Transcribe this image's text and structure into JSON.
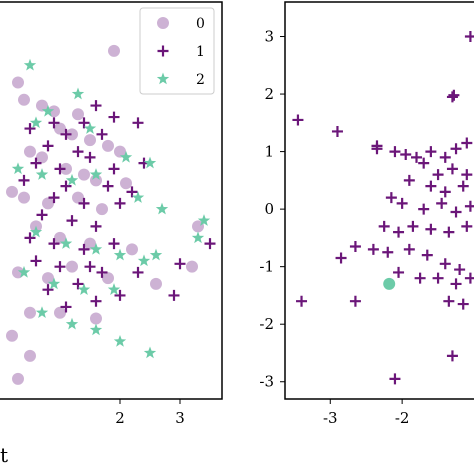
{
  "colors": {
    "class_0": "#cdb2d4",
    "class_1": "#6b1679",
    "class_2": "#6ccba8",
    "axis": "#000000",
    "legend_border": "#cccccc"
  },
  "cropped_xlabel_fragment": "t",
  "chart_data": [
    {
      "type": "scatter",
      "xticks": [
        "2",
        "3"
      ],
      "yticks": [],
      "xlim": [
        0.0,
        3.7
      ],
      "ylim": [
        -3.3,
        3.6
      ],
      "legend": {
        "placement": "top-right",
        "entries": [
          "0",
          "1",
          "2"
        ]
      },
      "series": [
        {
          "name": "0",
          "marker": "circle",
          "color": "#cdb2d4",
          "points": [
            [
              1.9,
              2.75
            ],
            [
              0.3,
              2.2
            ],
            [
              0.4,
              1.9
            ],
            [
              0.7,
              1.8
            ],
            [
              0.9,
              1.7
            ],
            [
              1.3,
              1.65
            ],
            [
              1.0,
              1.4
            ],
            [
              1.2,
              1.3
            ],
            [
              1.5,
              1.2
            ],
            [
              1.8,
              1.1
            ],
            [
              2.0,
              1.0
            ],
            [
              0.5,
              1.0
            ],
            [
              0.7,
              0.9
            ],
            [
              1.1,
              0.7
            ],
            [
              1.4,
              0.6
            ],
            [
              1.6,
              0.5
            ],
            [
              2.1,
              0.45
            ],
            [
              0.2,
              0.3
            ],
            [
              0.4,
              0.2
            ],
            [
              0.8,
              0.1
            ],
            [
              1.3,
              0.2
            ],
            [
              1.7,
              0.0
            ],
            [
              3.3,
              -0.3
            ],
            [
              0.6,
              -0.3
            ],
            [
              1.0,
              -0.5
            ],
            [
              1.5,
              -0.6
            ],
            [
              2.2,
              -0.7
            ],
            [
              3.2,
              -1.0
            ],
            [
              0.3,
              -1.1
            ],
            [
              0.8,
              -1.2
            ],
            [
              1.2,
              -1.0
            ],
            [
              1.8,
              -1.2
            ],
            [
              2.6,
              -1.3
            ],
            [
              0.5,
              -1.8
            ],
            [
              1.0,
              -1.8
            ],
            [
              1.6,
              -1.9
            ],
            [
              0.2,
              -2.2
            ],
            [
              0.5,
              -2.55
            ],
            [
              0.3,
              -2.95
            ]
          ]
        },
        {
          "name": "1",
          "marker": "plus",
          "color": "#6b1679",
          "points": [
            [
              1.6,
              1.8
            ],
            [
              1.9,
              1.6
            ],
            [
              0.9,
              1.5
            ],
            [
              1.4,
              1.5
            ],
            [
              0.5,
              1.4
            ],
            [
              1.1,
              1.3
            ],
            [
              1.7,
              1.3
            ],
            [
              2.3,
              1.5
            ],
            [
              0.8,
              1.1
            ],
            [
              1.3,
              1.0
            ],
            [
              1.5,
              0.9
            ],
            [
              0.6,
              0.8
            ],
            [
              1.0,
              0.7
            ],
            [
              1.9,
              0.7
            ],
            [
              2.4,
              0.8
            ],
            [
              0.4,
              0.5
            ],
            [
              1.1,
              0.4
            ],
            [
              1.8,
              0.4
            ],
            [
              2.2,
              0.3
            ],
            [
              0.9,
              0.2
            ],
            [
              1.4,
              0.1
            ],
            [
              2.0,
              0.1
            ],
            [
              0.7,
              -0.1
            ],
            [
              1.2,
              -0.2
            ],
            [
              1.6,
              -0.3
            ],
            [
              0.5,
              -0.5
            ],
            [
              0.9,
              -0.6
            ],
            [
              1.4,
              -0.7
            ],
            [
              1.9,
              -0.6
            ],
            [
              0.6,
              -0.9
            ],
            [
              1.0,
              -1.0
            ],
            [
              1.5,
              -1.0
            ],
            [
              1.7,
              -1.1
            ],
            [
              2.3,
              -1.1
            ],
            [
              0.8,
              -1.4
            ],
            [
              1.3,
              -1.3
            ],
            [
              2.0,
              -1.5
            ],
            [
              2.9,
              -1.5
            ],
            [
              1.1,
              -1.7
            ],
            [
              1.6,
              -1.6
            ],
            [
              3.0,
              -0.95
            ],
            [
              3.5,
              -0.6
            ]
          ]
        },
        {
          "name": "2",
          "marker": "star",
          "color": "#6ccba8",
          "points": [
            [
              0.5,
              2.5
            ],
            [
              1.3,
              2.0
            ],
            [
              0.8,
              1.7
            ],
            [
              0.6,
              1.5
            ],
            [
              1.5,
              1.4
            ],
            [
              2.1,
              0.9
            ],
            [
              2.5,
              0.8
            ],
            [
              0.3,
              0.7
            ],
            [
              0.7,
              0.6
            ],
            [
              1.2,
              0.5
            ],
            [
              1.6,
              0.6
            ],
            [
              2.3,
              0.2
            ],
            [
              2.7,
              0.0
            ],
            [
              3.4,
              -0.2
            ],
            [
              3.3,
              -0.5
            ],
            [
              0.6,
              -0.4
            ],
            [
              1.1,
              -0.6
            ],
            [
              1.6,
              -0.7
            ],
            [
              2.0,
              -0.8
            ],
            [
              2.4,
              -0.9
            ],
            [
              2.6,
              -0.8
            ],
            [
              0.4,
              -1.1
            ],
            [
              0.9,
              -1.3
            ],
            [
              1.4,
              -1.4
            ],
            [
              1.9,
              -1.4
            ],
            [
              0.7,
              -1.8
            ],
            [
              1.2,
              -2.0
            ],
            [
              1.6,
              -2.1
            ],
            [
              2.0,
              -2.3
            ],
            [
              2.5,
              -2.5
            ]
          ]
        }
      ]
    },
    {
      "type": "scatter",
      "xticks": [
        "-3",
        "-2"
      ],
      "yticks": [
        "3",
        "2",
        "1",
        "0",
        "-1",
        "-2",
        "-3"
      ],
      "xlim": [
        -3.63,
        -1.0
      ],
      "ylim": [
        -3.3,
        3.6
      ],
      "series": [
        {
          "name": "1",
          "marker": "plus",
          "color": "#6b1679",
          "points": [
            [
              -1.05,
              3.0
            ],
            [
              -1.3,
              1.95
            ],
            [
              -1.28,
              1.98
            ],
            [
              -3.45,
              1.55
            ],
            [
              -2.9,
              1.35
            ],
            [
              -2.35,
              1.1
            ],
            [
              -2.35,
              1.05
            ],
            [
              -2.1,
              1.0
            ],
            [
              -1.95,
              0.95
            ],
            [
              -1.8,
              0.9
            ],
            [
              -1.6,
              1.0
            ],
            [
              -1.4,
              0.9
            ],
            [
              -1.25,
              1.05
            ],
            [
              -1.1,
              1.15
            ],
            [
              -1.7,
              0.8
            ],
            [
              -1.5,
              0.6
            ],
            [
              -1.3,
              0.7
            ],
            [
              -1.1,
              0.6
            ],
            [
              -1.9,
              0.5
            ],
            [
              -1.6,
              0.4
            ],
            [
              -1.4,
              0.3
            ],
            [
              -1.15,
              0.4
            ],
            [
              -2.15,
              0.2
            ],
            [
              -2.0,
              0.1
            ],
            [
              -1.7,
              0.0
            ],
            [
              -1.45,
              0.1
            ],
            [
              -1.25,
              -0.05
            ],
            [
              -1.05,
              0.05
            ],
            [
              -2.25,
              -0.3
            ],
            [
              -2.05,
              -0.4
            ],
            [
              -1.85,
              -0.3
            ],
            [
              -1.6,
              -0.35
            ],
            [
              -1.35,
              -0.4
            ],
            [
              -1.1,
              -0.3
            ],
            [
              -2.65,
              -0.65
            ],
            [
              -2.4,
              -0.7
            ],
            [
              -2.2,
              -0.75
            ],
            [
              -1.9,
              -0.7
            ],
            [
              -1.65,
              -0.8
            ],
            [
              -1.4,
              -0.95
            ],
            [
              -1.2,
              -1.05
            ],
            [
              -2.85,
              -0.85
            ],
            [
              -2.05,
              -1.1
            ],
            [
              -1.75,
              -1.2
            ],
            [
              -1.5,
              -1.2
            ],
            [
              -1.25,
              -1.3
            ],
            [
              -1.05,
              -1.2
            ],
            [
              -1.35,
              -1.6
            ],
            [
              -1.15,
              -1.65
            ],
            [
              -3.4,
              -1.6
            ],
            [
              -2.65,
              -1.6
            ],
            [
              -1.3,
              -2.55
            ],
            [
              -2.1,
              -2.95
            ]
          ]
        },
        {
          "name": "2",
          "marker": "circle",
          "color": "#6ccba8",
          "points": [
            [
              -2.18,
              -1.3
            ]
          ]
        }
      ]
    }
  ]
}
